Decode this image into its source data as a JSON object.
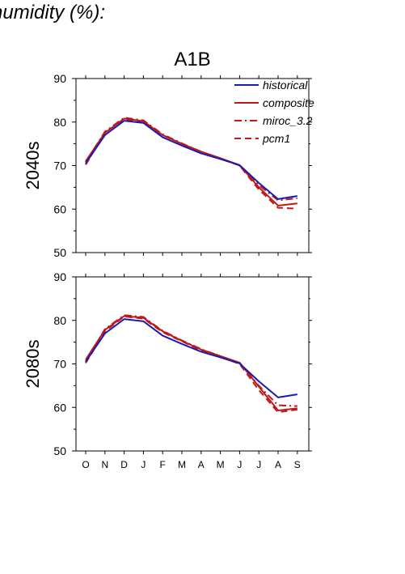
{
  "header": {
    "title": "humidity (%):"
  },
  "chart_data": {
    "type": "line",
    "scenario": "A1B",
    "x": [
      "O",
      "N",
      "D",
      "J",
      "F",
      "M",
      "A",
      "M",
      "J",
      "J",
      "A",
      "S"
    ],
    "ylim": [
      50,
      90
    ],
    "yticks": [
      50,
      60,
      70,
      80,
      90
    ],
    "legend": {
      "placement": "top-right",
      "entries": [
        "historical",
        "composite",
        "miroc_3.2",
        "pcm1"
      ]
    },
    "colors": {
      "historical": "#1a1ab4",
      "scenario": "#c01818"
    },
    "panels": [
      {
        "ylabel": "2040s",
        "series": [
          {
            "name": "historical",
            "values": [
              70.5,
              77.0,
              80.3,
              79.8,
              76.5,
              74.6,
              72.8,
              71.5,
              70.1,
              66.0,
              62.3,
              63.0
            ]
          },
          {
            "name": "composite",
            "values": [
              71.0,
              77.5,
              80.8,
              80.2,
              77.0,
              75.0,
              73.2,
              71.7,
              70.1,
              65.0,
              60.8,
              61.3
            ]
          },
          {
            "name": "miroc_3.2",
            "values": [
              70.8,
              77.8,
              81.0,
              80.4,
              77.2,
              75.1,
              73.2,
              71.6,
              70.0,
              65.5,
              62.0,
              62.5
            ]
          },
          {
            "name": "pcm1",
            "values": [
              70.2,
              77.6,
              80.6,
              80.0,
              77.0,
              75.0,
              73.0,
              71.6,
              70.0,
              64.5,
              60.3,
              60.1
            ]
          }
        ]
      },
      {
        "ylabel": "2080s",
        "series": [
          {
            "name": "historical",
            "values": [
              70.5,
              77.0,
              80.3,
              79.8,
              76.5,
              74.6,
              72.8,
              71.5,
              70.1,
              66.0,
              62.3,
              63.0
            ]
          },
          {
            "name": "composite",
            "values": [
              71.0,
              77.8,
              81.0,
              80.6,
              77.5,
              75.3,
              73.3,
              71.8,
              70.3,
              64.8,
              59.3,
              59.8
            ]
          },
          {
            "name": "miroc_3.2",
            "values": [
              70.6,
              78.0,
              81.2,
              80.8,
              77.6,
              75.4,
              73.4,
              71.8,
              70.2,
              65.0,
              60.5,
              60.3
            ]
          },
          {
            "name": "pcm1",
            "values": [
              70.2,
              77.5,
              80.9,
              80.4,
              77.3,
              75.2,
              73.1,
              71.6,
              70.0,
              64.0,
              58.9,
              59.5
            ]
          }
        ]
      }
    ]
  }
}
